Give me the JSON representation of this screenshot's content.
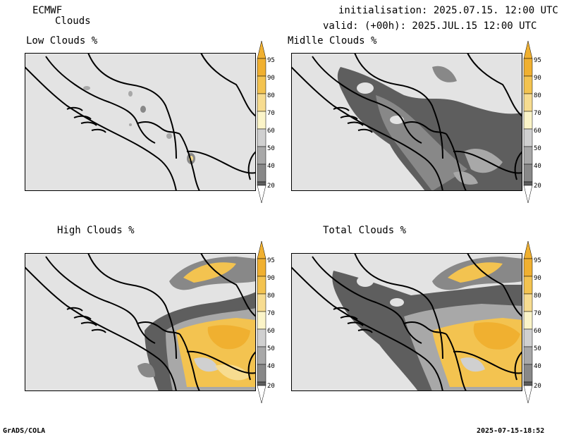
{
  "header": {
    "model": "ECMWF",
    "field": "Clouds",
    "init": "initialisation: 2025.07.15. 12:00 UTC",
    "valid": "valid: (+00h): 2025.JUL.15 12:00 UTC"
  },
  "panels": [
    {
      "title": "Low Clouds %"
    },
    {
      "title": "Midlle Clouds %"
    },
    {
      "title": "High Clouds %"
    },
    {
      "title": "Total Clouds %"
    }
  ],
  "colorbar": {
    "labels": [
      "95",
      "90",
      "80",
      "70",
      "60",
      "50",
      "40",
      "20"
    ],
    "colors": {
      "c95": "#f0b030",
      "c90": "#f3c350",
      "c80": "#f7dc90",
      "c70": "#fbf4c8",
      "c60": "#d0d0d0",
      "c50": "#a8a8a8",
      "c40": "#888888",
      "c20": "#5e5e5e",
      "background": "#e3e3e3"
    }
  },
  "footer": {
    "left": "GrADS/COLA",
    "right": "2025-07-15-18:52"
  }
}
